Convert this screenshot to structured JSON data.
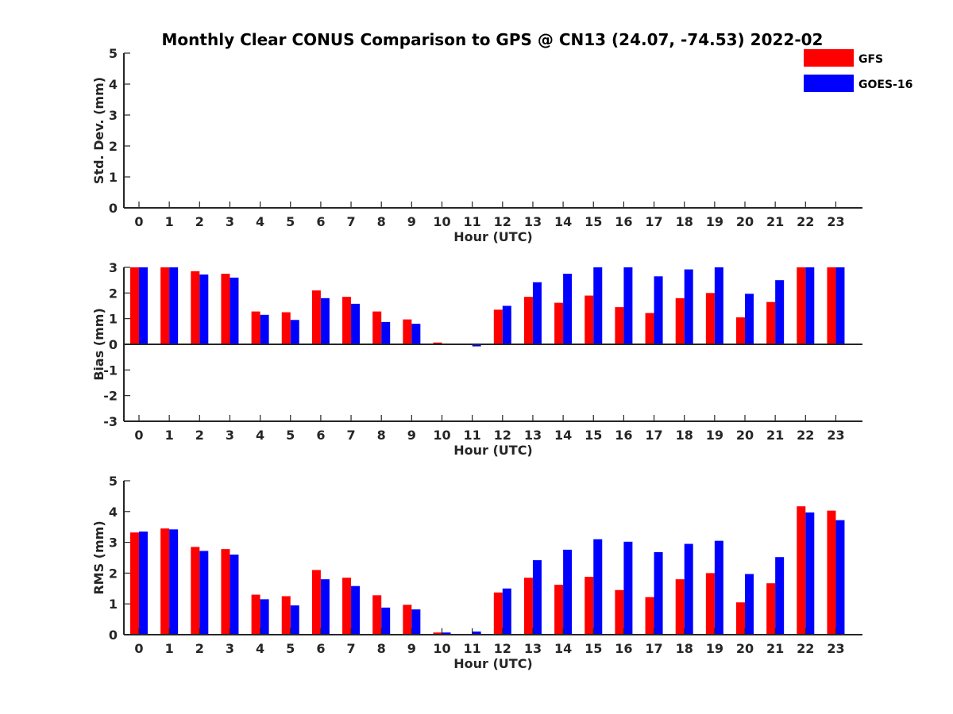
{
  "title": "Monthly Clear CONUS Comparison to GPS @ CN13 (24.07, -74.53) 2022-02",
  "legend": [
    {
      "name": "GFS",
      "color": "#ff0000"
    },
    {
      "name": "GOES-16",
      "color": "#0000ff"
    }
  ],
  "chart_data": [
    {
      "type": "bar",
      "title": "",
      "xlabel": "Hour (UTC)",
      "ylabel": "Std. Dev. (mm)",
      "ylim": [
        0,
        5
      ],
      "yticks": [
        "0",
        "1",
        "2",
        "3",
        "4",
        "5"
      ],
      "categories": [
        "0",
        "1",
        "2",
        "3",
        "4",
        "5",
        "6",
        "7",
        "8",
        "9",
        "10",
        "11",
        "12",
        "13",
        "14",
        "15",
        "16",
        "17",
        "18",
        "19",
        "20",
        "21",
        "22",
        "23"
      ],
      "series": [
        {
          "name": "GFS",
          "color": "#ff0000",
          "values": [
            0,
            0,
            0,
            0,
            0,
            0,
            0,
            0,
            0,
            0,
            0,
            0,
            0,
            0,
            0,
            0,
            0,
            0,
            0,
            0,
            0,
            0,
            0,
            0
          ]
        },
        {
          "name": "GOES-16",
          "color": "#0000ff",
          "values": [
            0,
            0,
            0,
            0,
            0,
            0,
            0,
            0,
            0,
            0,
            0,
            0,
            0,
            0,
            0,
            0,
            0,
            0,
            0,
            0,
            0,
            0,
            0,
            0
          ]
        }
      ]
    },
    {
      "type": "bar",
      "title": "",
      "xlabel": "Hour (UTC)",
      "ylabel": "Bias (mm)",
      "ylim": [
        -3,
        3
      ],
      "yticks": [
        "-3",
        "-2",
        "-1",
        "0",
        "1",
        "2",
        "3"
      ],
      "categories": [
        "0",
        "1",
        "2",
        "3",
        "4",
        "5",
        "6",
        "7",
        "8",
        "9",
        "10",
        "11",
        "12",
        "13",
        "14",
        "15",
        "16",
        "17",
        "18",
        "19",
        "20",
        "21",
        "22",
        "23"
      ],
      "series": [
        {
          "name": "GFS",
          "color": "#ff0000",
          "values": [
            3.0,
            3.0,
            2.85,
            2.75,
            1.28,
            1.25,
            2.1,
            1.85,
            1.28,
            0.97,
            0.07,
            0.0,
            1.35,
            1.85,
            1.62,
            1.9,
            1.45,
            1.22,
            1.8,
            2.0,
            1.05,
            1.65,
            3.0,
            3.0
          ]
        },
        {
          "name": "GOES-16",
          "color": "#0000ff",
          "values": [
            3.0,
            3.0,
            2.72,
            2.6,
            1.15,
            0.95,
            1.8,
            1.58,
            0.87,
            0.8,
            -0.03,
            -0.08,
            1.5,
            2.42,
            2.75,
            3.0,
            3.0,
            2.65,
            2.92,
            3.0,
            1.97,
            2.5,
            3.0,
            3.0
          ]
        }
      ]
    },
    {
      "type": "bar",
      "title": "",
      "xlabel": "Hour (UTC)",
      "ylabel": "RMS (mm)",
      "ylim": [
        0,
        5
      ],
      "yticks": [
        "0",
        "1",
        "2",
        "3",
        "4",
        "5"
      ],
      "categories": [
        "0",
        "1",
        "2",
        "3",
        "4",
        "5",
        "6",
        "7",
        "8",
        "9",
        "10",
        "11",
        "12",
        "13",
        "14",
        "15",
        "16",
        "17",
        "18",
        "19",
        "20",
        "21",
        "22",
        "23"
      ],
      "series": [
        {
          "name": "GFS",
          "color": "#ff0000",
          "values": [
            3.32,
            3.45,
            2.85,
            2.78,
            1.3,
            1.25,
            2.1,
            1.85,
            1.28,
            0.97,
            0.07,
            0.0,
            1.37,
            1.85,
            1.62,
            1.88,
            1.45,
            1.22,
            1.8,
            2.0,
            1.05,
            1.67,
            4.17,
            4.03
          ]
        },
        {
          "name": "GOES-16",
          "color": "#0000ff",
          "values": [
            3.35,
            3.42,
            2.72,
            2.6,
            1.15,
            0.95,
            1.8,
            1.58,
            0.88,
            0.82,
            0.07,
            0.1,
            1.5,
            2.42,
            2.76,
            3.1,
            3.02,
            2.68,
            2.95,
            3.05,
            1.97,
            2.52,
            3.97,
            3.72
          ]
        }
      ]
    }
  ]
}
